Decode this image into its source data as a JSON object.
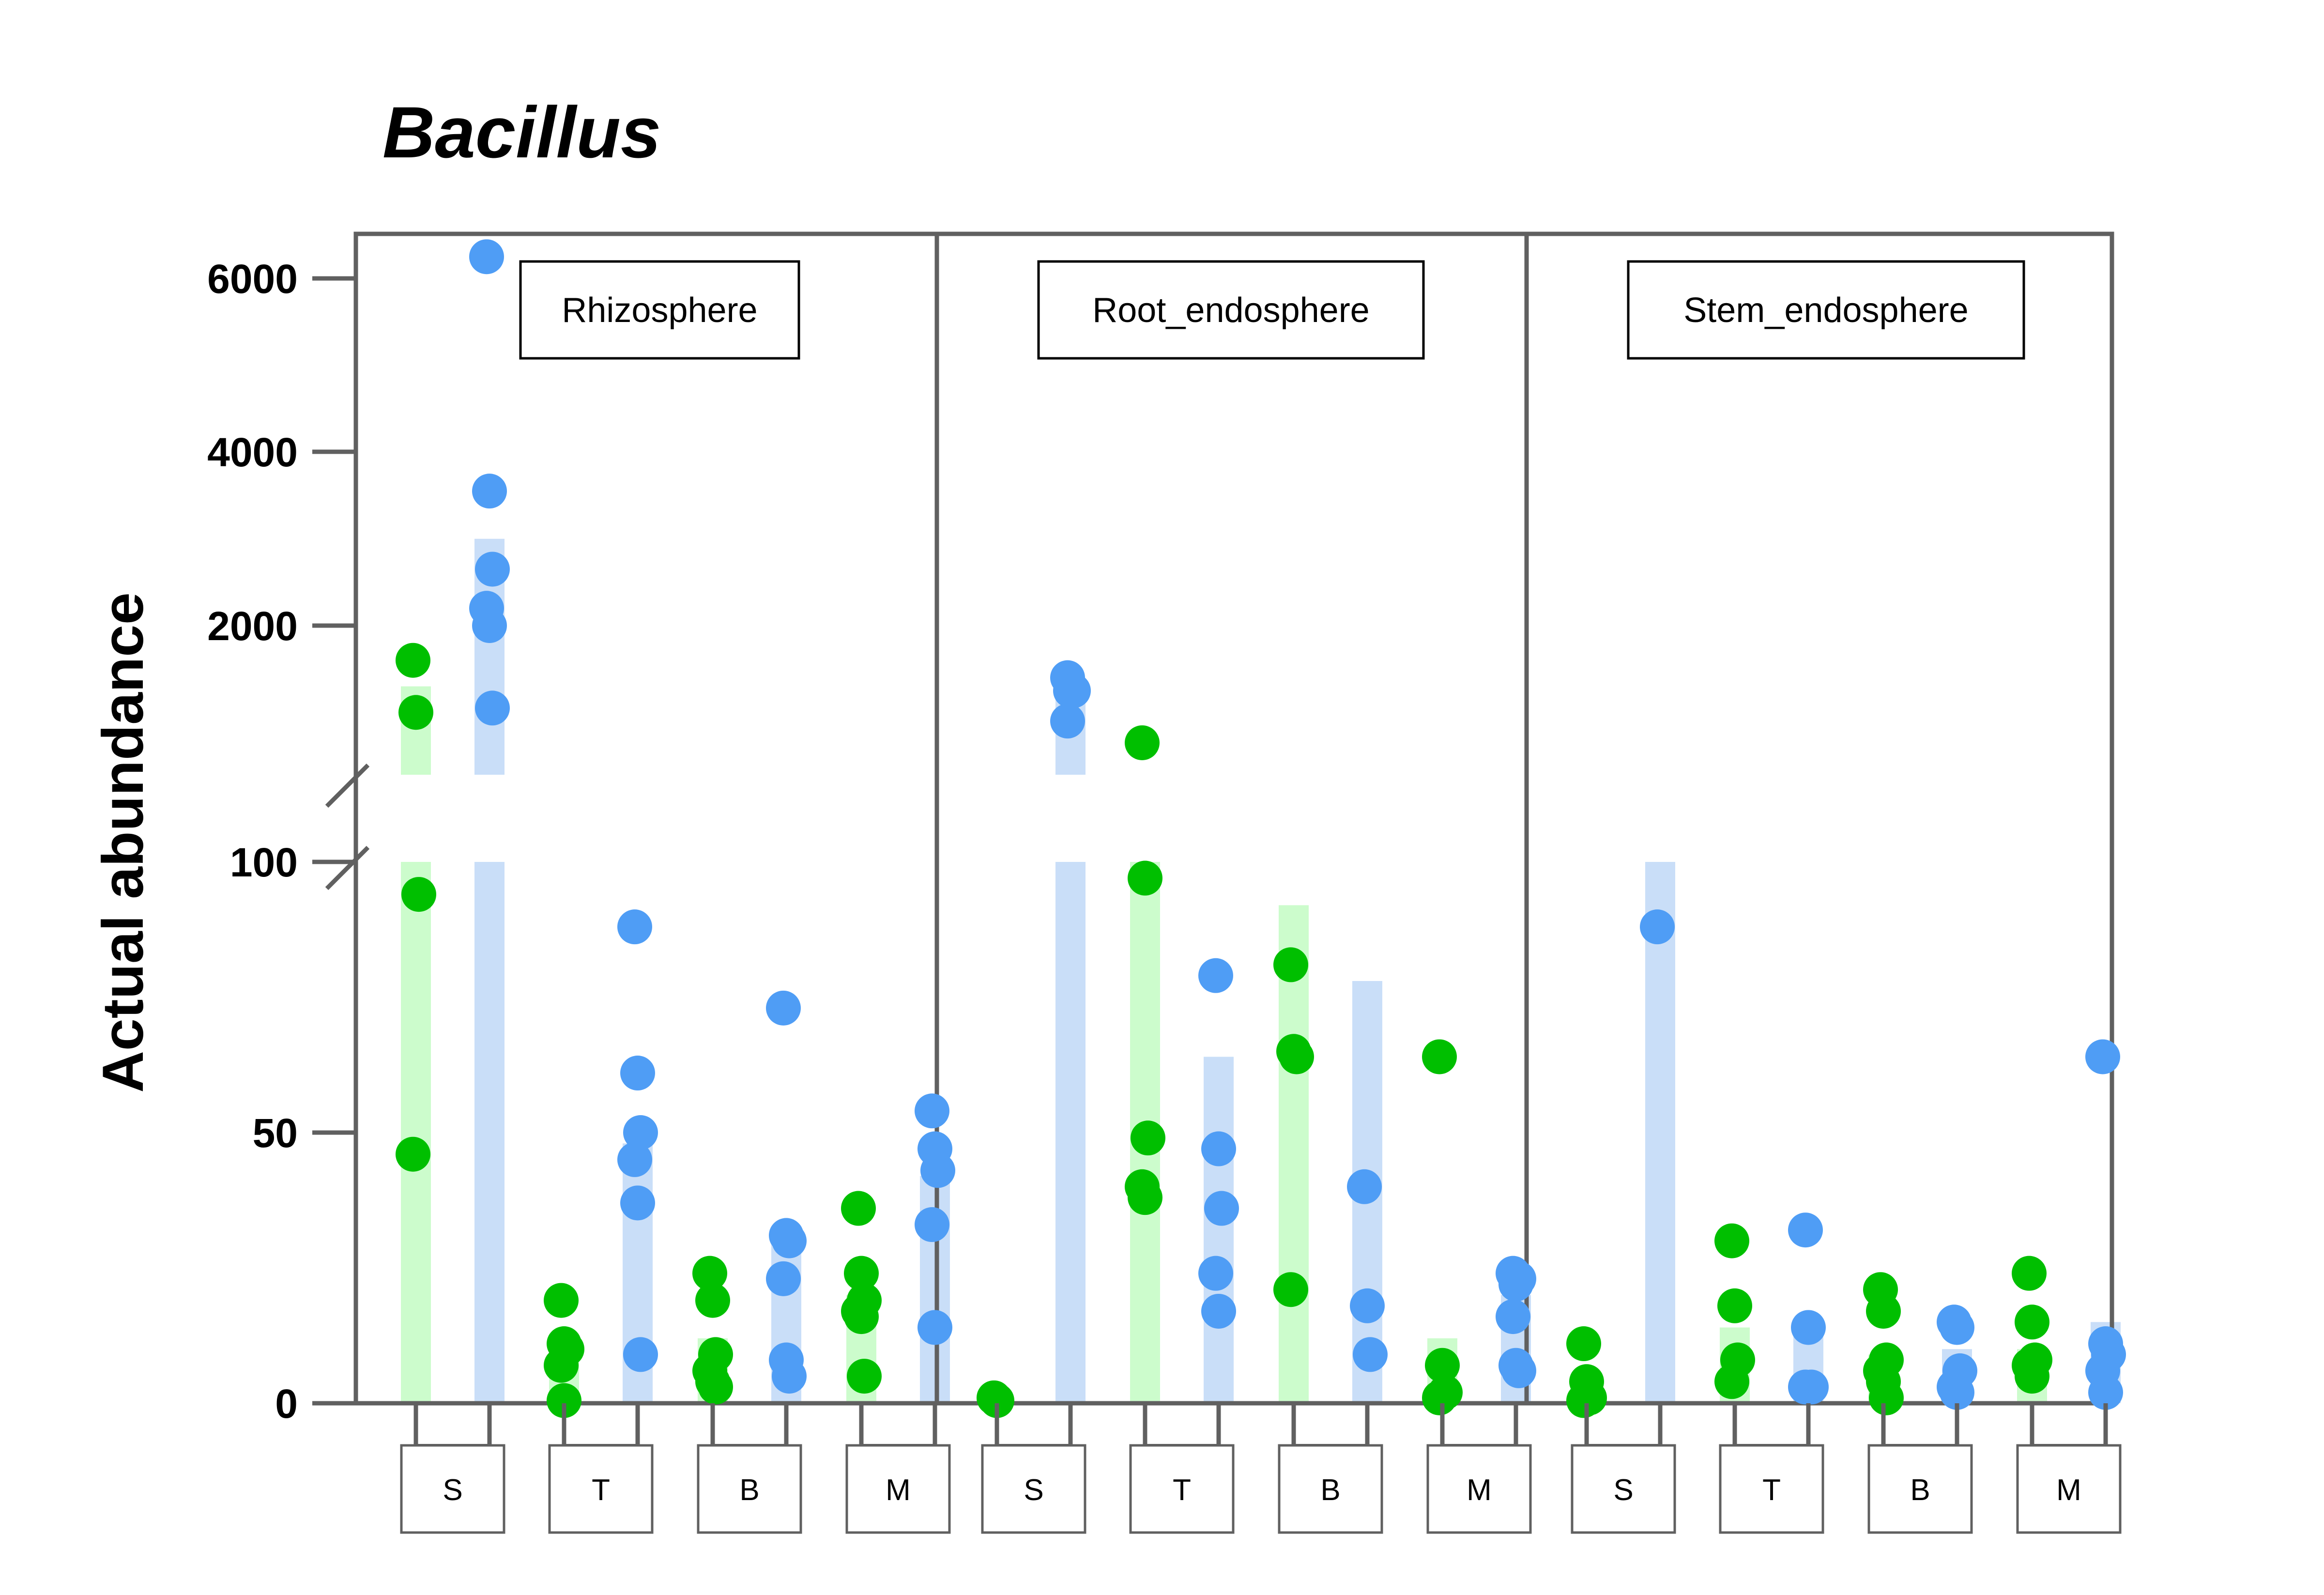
{
  "chart_data": {
    "type": "scatter",
    "title": "Bacillus",
    "ylabel": "Actual abundance",
    "y_axis": {
      "broken": true,
      "lower_range": [
        0,
        100
      ],
      "lower_ticks": [
        "0",
        "50",
        "100"
      ],
      "upper_range": [
        1000,
        6500
      ],
      "upper_ticks": [
        "2000",
        "4000",
        "6000"
      ]
    },
    "facets": [
      "Rhizosphere",
      "Root_endosphere",
      "Stem_endosphere"
    ],
    "categories": [
      "S",
      "T",
      "B",
      "M"
    ],
    "colors": {
      "green": "#00bf00",
      "blue": "#4f9df5",
      "green_bar": "#ccfccc",
      "blue_bar": "#c9def8",
      "frame": "#606060"
    },
    "groups": [
      {
        "facet": "Rhizosphere",
        "category": "S",
        "color": "green",
        "bar": 1300,
        "points": [
          1600,
          1000,
          94,
          46
        ]
      },
      {
        "facet": "Rhizosphere",
        "category": "S",
        "color": "blue",
        "bar": 3000,
        "points": [
          6250,
          3550,
          2650,
          2200,
          2000,
          1050
        ]
      },
      {
        "facet": "Rhizosphere",
        "category": "T",
        "color": "green",
        "bar": 11,
        "points": [
          19,
          11,
          10,
          7,
          0.5
        ]
      },
      {
        "facet": "Rhizosphere",
        "category": "T",
        "color": "blue",
        "bar": 48,
        "points": [
          88,
          61,
          50,
          45,
          37,
          9
        ]
      },
      {
        "facet": "Rhizosphere",
        "category": "B",
        "color": "green",
        "bar": 12,
        "points": [
          24,
          19,
          9,
          6,
          4,
          3
        ]
      },
      {
        "facet": "Rhizosphere",
        "category": "B",
        "color": "blue",
        "bar": 30,
        "points": [
          73,
          31,
          30,
          23,
          8,
          5
        ]
      },
      {
        "facet": "Rhizosphere",
        "category": "M",
        "color": "green",
        "bar": 20,
        "points": [
          36,
          24,
          19,
          17,
          16,
          5
        ]
      },
      {
        "facet": "Rhizosphere",
        "category": "M",
        "color": "blue",
        "bar": 42,
        "points": [
          54,
          47,
          43,
          33,
          14
        ]
      },
      {
        "facet": "Root_endosphere",
        "category": "S",
        "color": "green",
        "bar": 1,
        "points": [
          1,
          0.5
        ]
      },
      {
        "facet": "Root_endosphere",
        "category": "S",
        "color": "blue",
        "bar": 1350,
        "points": [
          1400,
          1250,
          1250,
          900
        ]
      },
      {
        "facet": "Root_endosphere",
        "category": "T",
        "color": "green",
        "bar": 100,
        "points": [
          650,
          97,
          49,
          40,
          38
        ]
      },
      {
        "facet": "Root_endosphere",
        "category": "T",
        "color": "blue",
        "bar": 64,
        "points": [
          79,
          47,
          36,
          24,
          17
        ]
      },
      {
        "facet": "Root_endosphere",
        "category": "B",
        "color": "green",
        "bar": 92,
        "points": [
          81,
          65,
          64,
          21
        ]
      },
      {
        "facet": "Root_endosphere",
        "category": "B",
        "color": "blue",
        "bar": 78,
        "points": [
          40,
          18,
          9
        ]
      },
      {
        "facet": "Root_endosphere",
        "category": "M",
        "color": "green",
        "bar": 12,
        "points": [
          64,
          7,
          2,
          1
        ]
      },
      {
        "facet": "Root_endosphere",
        "category": "M",
        "color": "blue",
        "bar": 20,
        "points": [
          24,
          22,
          23,
          16,
          7,
          6
        ]
      },
      {
        "facet": "Stem_endosphere",
        "category": "S",
        "color": "green",
        "bar": 5,
        "points": [
          11,
          4,
          1,
          0.5
        ]
      },
      {
        "facet": "Stem_endosphere",
        "category": "S",
        "color": "blue",
        "bar": 100,
        "points": [
          88
        ]
      },
      {
        "facet": "Stem_endosphere",
        "category": "T",
        "color": "green",
        "bar": 14,
        "points": [
          30,
          18,
          8,
          4
        ]
      },
      {
        "facet": "Stem_endosphere",
        "category": "T",
        "color": "blue",
        "bar": 14,
        "points": [
          32,
          14,
          3,
          3
        ]
      },
      {
        "facet": "Stem_endosphere",
        "category": "B",
        "color": "green",
        "bar": 9,
        "points": [
          21,
          17,
          8,
          6,
          4,
          1
        ]
      },
      {
        "facet": "Stem_endosphere",
        "category": "B",
        "color": "blue",
        "bar": 10,
        "points": [
          15,
          14,
          6,
          3,
          2
        ]
      },
      {
        "facet": "Stem_endosphere",
        "category": "M",
        "color": "green",
        "bar": 10,
        "points": [
          24,
          15,
          8,
          7,
          5
        ]
      },
      {
        "facet": "Stem_endosphere",
        "category": "M",
        "color": "blue",
        "bar": 15,
        "points": [
          64,
          11,
          9,
          6,
          2
        ]
      }
    ]
  }
}
